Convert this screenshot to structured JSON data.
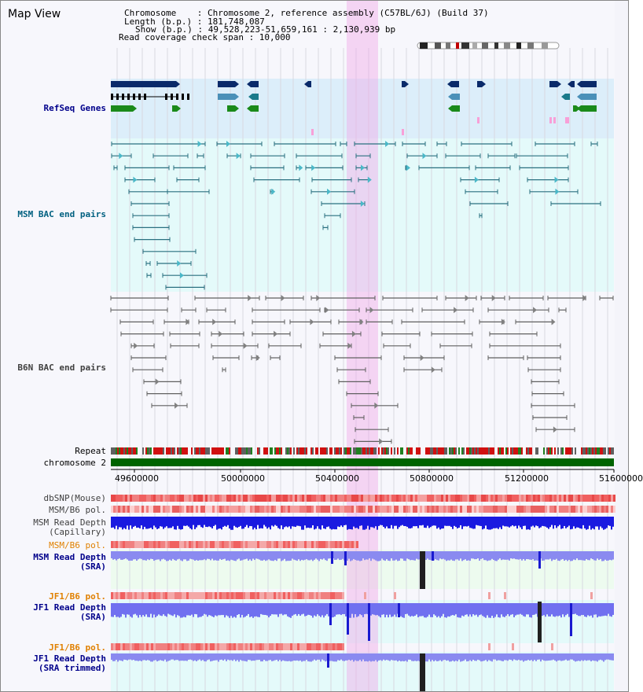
{
  "title": "Map View",
  "info": {
    "chromosome": "Chromosome    : Chromosome 2, reference assembly (C57BL/6J) (Build 37)",
    "length": "Length (b.p.) : 181,748,087",
    "show": "Show (b.p.) : 49,528,223-51,659,161 : 2,130,939 bp",
    "coverage": "Read coverage check span : 10,000"
  },
  "tracks": {
    "refseq": "RefSeq Genes",
    "msm_bac": "MSM BAC end pairs",
    "b6n_bac": "B6N BAC end pairs",
    "repeat": "Repeat",
    "chromosome": "chromosome 2",
    "dbsnp": "dbSNP(Mouse)",
    "msm_b6_pol": "MSM/B6 pol.",
    "msm_depth_cap": "MSM Read Depth\n(Capillary)",
    "msm_b6_pol2": "MSM/B6 pol.",
    "msm_depth_sra": "MSM Read Depth\n(SRA)",
    "jf1_b6_pol": "JF1/B6 pol.",
    "jf1_depth_sra": "JF1 Read Depth\n(SRA)",
    "jf1_b6_pol2": "JF1/B6 pol.",
    "jf1_depth_trim": "JF1 Read Depth\n(SRA trimmed)"
  },
  "axis": {
    "ticks": [
      "49600000",
      "50000000",
      "50400000",
      "50800000",
      "51200000",
      "51600000"
    ]
  },
  "colors": {
    "label_blue": "#00008b",
    "label_teal": "#006080",
    "label_gray": "#404040",
    "label_orange": "#e08000",
    "highlight": "#f8d8f0",
    "refseq_bg": "#dceefa",
    "msm_bg": "#e4fafa",
    "chromosome": "#006400"
  }
}
